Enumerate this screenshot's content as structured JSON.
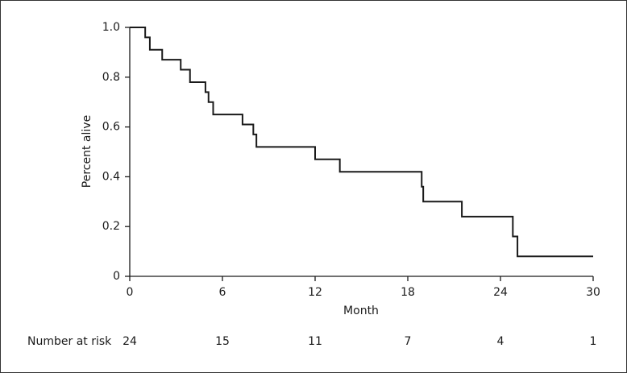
{
  "chart_data": {
    "type": "step",
    "x": [
      0,
      1,
      1.3,
      2.1,
      3.3,
      3.9,
      4.9,
      5.1,
      5.4,
      7.3,
      8,
      8.2,
      12,
      13.6,
      18.9,
      19,
      21.5,
      24.8,
      25.1,
      30
    ],
    "values": [
      1,
      0.96,
      0.91,
      0.87,
      0.83,
      0.78,
      0.74,
      0.7,
      0.65,
      0.61,
      0.57,
      0.52,
      0.47,
      0.42,
      0.36,
      0.3,
      0.24,
      0.16,
      0.08,
      0.08
    ],
    "color": "#1a1a1a",
    "x_label": "Month",
    "y_label": "Percent alive",
    "xlim": [
      0,
      30
    ],
    "xticks": [
      0,
      6,
      12,
      18,
      24,
      30
    ],
    "ylim": [
      0,
      1
    ],
    "yticks": [
      0,
      0.2,
      0.4,
      0.6,
      0.8,
      {
        "value": 1,
        "label": "1.0"
      }
    ],
    "at_risk": {
      "label": "Number at risk",
      "values": [
        24,
        15,
        11,
        7,
        4,
        1
      ]
    }
  }
}
